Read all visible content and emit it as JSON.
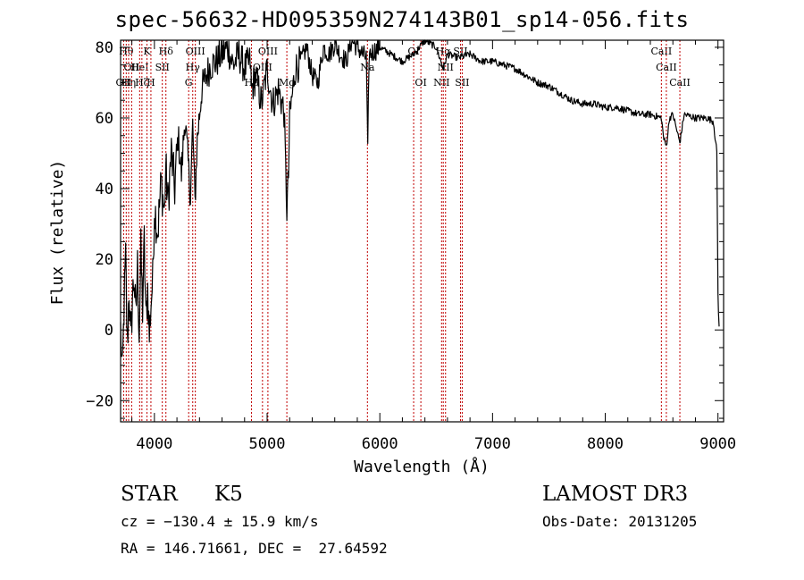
{
  "chart_data": {
    "type": "line",
    "title": "spec-56632-HD095359N274143B01_sp14-056.fits",
    "xlabel": "Wavelength (Å)",
    "ylabel": "Flux (relative)",
    "xlim": [
      3700,
      9050
    ],
    "ylim": [
      -26,
      82
    ],
    "xticks": [
      "4000",
      "5000",
      "6000",
      "7000",
      "8000",
      "9000"
    ],
    "yticks": [
      "−20",
      "0",
      "20",
      "40",
      "60",
      "80"
    ],
    "xtick_values": [
      4000,
      5000,
      6000,
      7000,
      8000,
      9000
    ],
    "ytick_values": [
      -20,
      0,
      20,
      40,
      60,
      80
    ],
    "grid": false,
    "spectrum_color": "#000000",
    "line_marker_color": "#c00000",
    "series": [
      {
        "x": [
          3700,
          3715,
          3730,
          3745,
          3760,
          3775,
          3790,
          3805,
          3820,
          3835,
          3850,
          3865,
          3880,
          3895,
          3910,
          3925,
          3940,
          3955,
          3970,
          3985,
          4000,
          4030,
          4060,
          4090,
          4100,
          4120,
          4150,
          4180,
          4210,
          4240,
          4270,
          4300,
          4320,
          4340,
          4360,
          4380,
          4420,
          4460,
          4500,
          4550,
          4600,
          4650,
          4700,
          4750,
          4800,
          4850,
          4861,
          4900,
          4950,
          5000,
          5050,
          5100,
          5150,
          5175,
          5190,
          5200,
          5250,
          5300,
          5350,
          5400,
          5450,
          5500,
          5550,
          5600,
          5650,
          5700,
          5750,
          5800,
          5850,
          5880,
          5893,
          5905,
          5950,
          6000,
          6100,
          6200,
          6300,
          6400,
          6500,
          6563,
          6600,
          6700,
          6800,
          6900,
          7000,
          7100,
          7200,
          7300,
          7400,
          7500,
          7600,
          7700,
          7800,
          7900,
          8000,
          8100,
          8200,
          8300,
          8400,
          8498,
          8520,
          8542,
          8570,
          8600,
          8662,
          8700,
          8800,
          8900,
          8960,
          8990,
          9000,
          9010
        ],
        "y": [
          0,
          -14,
          6,
          20,
          -5,
          12,
          -4,
          9,
          15,
          3,
          18,
          -1,
          22,
          6,
          25,
          2,
          12,
          -2,
          8,
          14,
          35,
          28,
          42,
          33,
          46,
          36,
          50,
          40,
          55,
          44,
          60,
          47,
          38,
          58,
          36,
          54,
          68,
          72,
          75,
          76,
          78,
          80,
          75,
          78,
          74,
          76,
          68,
          72,
          64,
          74,
          64,
          68,
          62,
          34,
          44,
          60,
          74,
          76,
          80,
          72,
          70,
          80,
          78,
          81,
          78,
          76,
          82,
          80,
          78,
          77,
          50,
          78,
          79,
          80,
          78,
          76,
          78,
          82,
          80,
          74,
          78,
          77,
          78,
          76,
          76,
          75,
          74,
          72,
          70,
          69,
          67,
          65,
          64,
          64,
          63,
          63,
          62,
          61,
          61,
          60,
          54,
          52,
          60,
          61,
          53,
          61,
          60,
          60,
          59,
          50,
          10,
          1
        ]
      }
    ],
    "line_markers": [
      {
        "x": 3727,
        "label": "OII",
        "level": 3
      },
      {
        "x": 3750,
        "label": "Hθ",
        "level": 1
      },
      {
        "x": 3771,
        "label": "Hη",
        "level": 3
      },
      {
        "x": 3798,
        "label": "OII",
        "level": 2
      },
      {
        "x": 3869,
        "label": "HeI",
        "level": 2
      },
      {
        "x": 3889,
        "label": "Hζ",
        "level": 3
      },
      {
        "x": 3934,
        "label": "K",
        "level": 1
      },
      {
        "x": 3969,
        "label": "H",
        "level": 3
      },
      {
        "x": 4070,
        "label": "SII",
        "level": 2
      },
      {
        "x": 4102,
        "label": "Hδ",
        "level": 1
      },
      {
        "x": 4304,
        "label": "G",
        "level": 3
      },
      {
        "x": 4340,
        "label": "Hγ",
        "level": 2
      },
      {
        "x": 4363,
        "label": "OIII",
        "level": 1
      },
      {
        "x": 4861,
        "label": "Hβ",
        "level": 3
      },
      {
        "x": 4959,
        "label": "OIII",
        "level": 2
      },
      {
        "x": 5007,
        "label": "OIII",
        "level": 1
      },
      {
        "x": 5175,
        "label": "Mg",
        "level": 3
      },
      {
        "x": 5890,
        "label": "Na",
        "level": 2
      },
      {
        "x": 6300,
        "label": "OI",
        "level": 1
      },
      {
        "x": 6364,
        "label": "OI",
        "level": 3
      },
      {
        "x": 6548,
        "label": "NII",
        "level": 3
      },
      {
        "x": 6563,
        "label": "Hα",
        "level": 1
      },
      {
        "x": 6583,
        "label": "NII",
        "level": 2
      },
      {
        "x": 6716,
        "label": "SII",
        "level": 1
      },
      {
        "x": 6731,
        "label": "SII",
        "level": 3
      },
      {
        "x": 8498,
        "label": "CaII",
        "level": 1
      },
      {
        "x": 8542,
        "label": "CaII",
        "level": 2
      },
      {
        "x": 8662,
        "label": "CaII",
        "level": 3
      }
    ]
  },
  "info": {
    "class_label": "STAR",
    "subclass_label": "K5",
    "survey": "LAMOST DR3",
    "cz_text": "cz = −130.4 ± 15.9 km/s",
    "obs_date_text": "Obs-Date: 20131205",
    "coords_text": "RA = 146.71661, DEC =  27.64592"
  }
}
